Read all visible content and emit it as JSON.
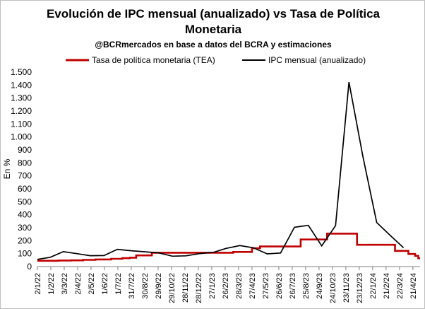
{
  "chart_data": {
    "type": "line",
    "title_line1": "Evolución de IPC mensual (anualizado) vs Tasa de Política",
    "title_line2": "Monetaria",
    "subtitle": "@BCRmercados en base a datos del BCRA y estimaciones",
    "ylabel": "En %",
    "xlabel": "",
    "ylim": [
      0,
      1500
    ],
    "yticks": [
      0,
      100,
      200,
      300,
      400,
      500,
      600,
      700,
      800,
      900,
      1000,
      1100,
      1200,
      1300,
      1400,
      1500
    ],
    "ytick_labels": [
      "0",
      "100",
      "200",
      "300",
      "400",
      "500",
      "600",
      "700",
      "800",
      "900",
      "1.000",
      "1.100",
      "1.200",
      "1.300",
      "1.400",
      "1.500"
    ],
    "x_range": [
      "2022-01-02",
      "2024-05-07"
    ],
    "xtick_dates": [
      "2022-01-02",
      "2022-02-01",
      "2022-03-03",
      "2022-04-02",
      "2022-05-02",
      "2022-06-01",
      "2022-07-01",
      "2022-07-31",
      "2022-08-30",
      "2022-09-29",
      "2022-10-29",
      "2022-11-28",
      "2022-12-28",
      "2023-01-27",
      "2023-02-26",
      "2023-03-28",
      "2023-04-27",
      "2023-05-27",
      "2023-06-26",
      "2023-07-26",
      "2023-08-25",
      "2023-09-24",
      "2023-10-24",
      "2023-11-23",
      "2023-12-23",
      "2024-01-22",
      "2024-02-21",
      "2024-03-22",
      "2024-04-21"
    ],
    "xtick_labels": [
      "2/1/22",
      "1/2/22",
      "3/3/22",
      "2/4/22",
      "2/5/22",
      "1/6/22",
      "1/7/22",
      "31/7/22",
      "30/8/22",
      "29/9/22",
      "29/10/22",
      "28/11/22",
      "28/12/22",
      "27/1/23",
      "26/2/23",
      "28/3/23",
      "27/4/23",
      "27/5/23",
      "26/6/23",
      "26/7/23",
      "25/8/23",
      "24/9/23",
      "24/10/23",
      "23/11/23",
      "23/12/23",
      "22/1/24",
      "21/2/24",
      "22/3/24",
      "21/4/24"
    ],
    "grid": false,
    "legend_position": "top",
    "series": [
      {
        "name": "Tasa de política monetaria (TEA)",
        "color": "#c00000",
        "step": true,
        "points": [
          [
            "2022-01-02",
            45
          ],
          [
            "2022-02-18",
            47
          ],
          [
            "2022-03-18",
            48
          ],
          [
            "2022-04-14",
            52
          ],
          [
            "2022-05-12",
            55
          ],
          [
            "2022-06-16",
            60
          ],
          [
            "2022-07-11",
            65
          ],
          [
            "2022-07-28",
            69
          ],
          [
            "2022-08-11",
            86
          ],
          [
            "2022-09-15",
            107
          ],
          [
            "2022-10-15",
            107
          ],
          [
            "2022-11-15",
            107
          ],
          [
            "2023-01-15",
            107
          ],
          [
            "2023-03-16",
            113
          ],
          [
            "2023-04-27",
            141
          ],
          [
            "2023-05-15",
            155
          ],
          [
            "2023-06-15",
            155
          ],
          [
            "2023-07-15",
            155
          ],
          [
            "2023-08-14",
            209
          ],
          [
            "2023-09-15",
            209
          ],
          [
            "2023-10-12",
            254
          ],
          [
            "2023-11-15",
            254
          ],
          [
            "2023-12-18",
            168
          ],
          [
            "2024-01-15",
            168
          ],
          [
            "2024-02-15",
            168
          ],
          [
            "2024-03-12",
            121
          ],
          [
            "2024-04-11",
            97
          ],
          [
            "2024-04-26",
            83
          ],
          [
            "2024-05-03",
            64
          ],
          [
            "2024-05-07",
            64
          ]
        ]
      },
      {
        "name": "IPC mensual (anualizado)",
        "color": "#000000",
        "step": false,
        "points": [
          [
            "2022-01-02",
            55
          ],
          [
            "2022-01-31",
            72
          ],
          [
            "2022-03-01",
            115
          ],
          [
            "2022-03-31",
            100
          ],
          [
            "2022-04-30",
            84
          ],
          [
            "2022-05-31",
            85
          ],
          [
            "2022-06-30",
            133
          ],
          [
            "2022-07-31",
            122
          ],
          [
            "2022-08-31",
            114
          ],
          [
            "2022-09-30",
            106
          ],
          [
            "2022-10-31",
            80
          ],
          [
            "2022-11-30",
            83
          ],
          [
            "2022-12-31",
            100
          ],
          [
            "2023-01-31",
            110
          ],
          [
            "2023-02-28",
            140
          ],
          [
            "2023-03-31",
            162
          ],
          [
            "2023-04-30",
            145
          ],
          [
            "2023-05-31",
            98
          ],
          [
            "2023-06-30",
            105
          ],
          [
            "2023-07-31",
            303
          ],
          [
            "2023-08-31",
            318
          ],
          [
            "2023-09-30",
            160
          ],
          [
            "2023-10-31",
            316
          ],
          [
            "2023-11-30",
            1423
          ],
          [
            "2023-12-31",
            850
          ],
          [
            "2024-01-31",
            340
          ],
          [
            "2024-02-29",
            245
          ],
          [
            "2024-03-31",
            145
          ]
        ]
      }
    ]
  }
}
